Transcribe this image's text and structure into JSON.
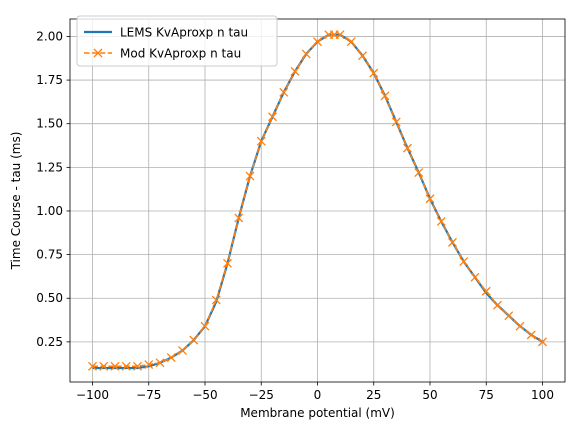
{
  "chart_data": {
    "type": "line",
    "xlabel": "Membrane potential (mV)",
    "ylabel": "Time Course - tau (ms)",
    "xlim": [
      -110,
      110
    ],
    "ylim": [
      0.02,
      2.1
    ],
    "xticks": [
      -100,
      -75,
      -50,
      -25,
      0,
      25,
      50,
      75,
      100
    ],
    "xtick_labels": [
      "−100",
      "−75",
      "−50",
      "−25",
      "0",
      "25",
      "50",
      "75",
      "100"
    ],
    "yticks": [
      0.25,
      0.5,
      0.75,
      1.0,
      1.25,
      1.5,
      1.75,
      2.0
    ],
    "ytick_labels": [
      "0.25",
      "0.50",
      "0.75",
      "1.00",
      "1.25",
      "1.50",
      "1.75",
      "2.00"
    ],
    "grid": true,
    "legend_position": "top-left",
    "series": [
      {
        "name": "LEMS KvAproxp n tau",
        "color": "#1f77b4",
        "style": "solid",
        "x": [
          -100,
          -95,
          -90,
          -85,
          -80,
          -75,
          -70,
          -65,
          -60,
          -55,
          -50,
          -45,
          -40,
          -35,
          -30,
          -25,
          -20,
          -15,
          -10,
          -5,
          0,
          5,
          10,
          15,
          20,
          25,
          30,
          35,
          40,
          45,
          50,
          55,
          60,
          65,
          70,
          75,
          80,
          85,
          90,
          95,
          100
        ],
        "y": [
          0.1,
          0.1,
          0.1,
          0.1,
          0.1,
          0.11,
          0.13,
          0.16,
          0.2,
          0.26,
          0.34,
          0.48,
          0.7,
          0.96,
          1.2,
          1.4,
          1.54,
          1.68,
          1.8,
          1.9,
          1.97,
          2.01,
          2.01,
          1.97,
          1.89,
          1.79,
          1.66,
          1.51,
          1.36,
          1.22,
          1.07,
          0.94,
          0.82,
          0.71,
          0.62,
          0.53,
          0.46,
          0.4,
          0.34,
          0.29,
          0.25
        ]
      },
      {
        "name": "Mod KvAproxp n tau",
        "color": "#ff7f0e",
        "style": "dashed",
        "marker": "x",
        "x": [
          -100,
          -95,
          -90,
          -85,
          -80,
          -75,
          -70,
          -65,
          -60,
          -55,
          -50,
          -45,
          -40,
          -35,
          -30,
          -25,
          -20,
          -15,
          -10,
          -5,
          0,
          5,
          7.5,
          10,
          15,
          20,
          25,
          30,
          35,
          40,
          45,
          50,
          55,
          60,
          65,
          70,
          75,
          80,
          85,
          90,
          95,
          100
        ],
        "y": [
          0.11,
          0.11,
          0.11,
          0.11,
          0.11,
          0.12,
          0.13,
          0.16,
          0.2,
          0.26,
          0.34,
          0.49,
          0.7,
          0.96,
          1.2,
          1.4,
          1.54,
          1.68,
          1.8,
          1.9,
          1.97,
          2.01,
          2.01,
          2.01,
          1.97,
          1.89,
          1.79,
          1.66,
          1.51,
          1.36,
          1.22,
          1.07,
          0.94,
          0.82,
          0.71,
          0.62,
          0.54,
          0.46,
          0.4,
          0.34,
          0.29,
          0.25
        ]
      }
    ]
  }
}
